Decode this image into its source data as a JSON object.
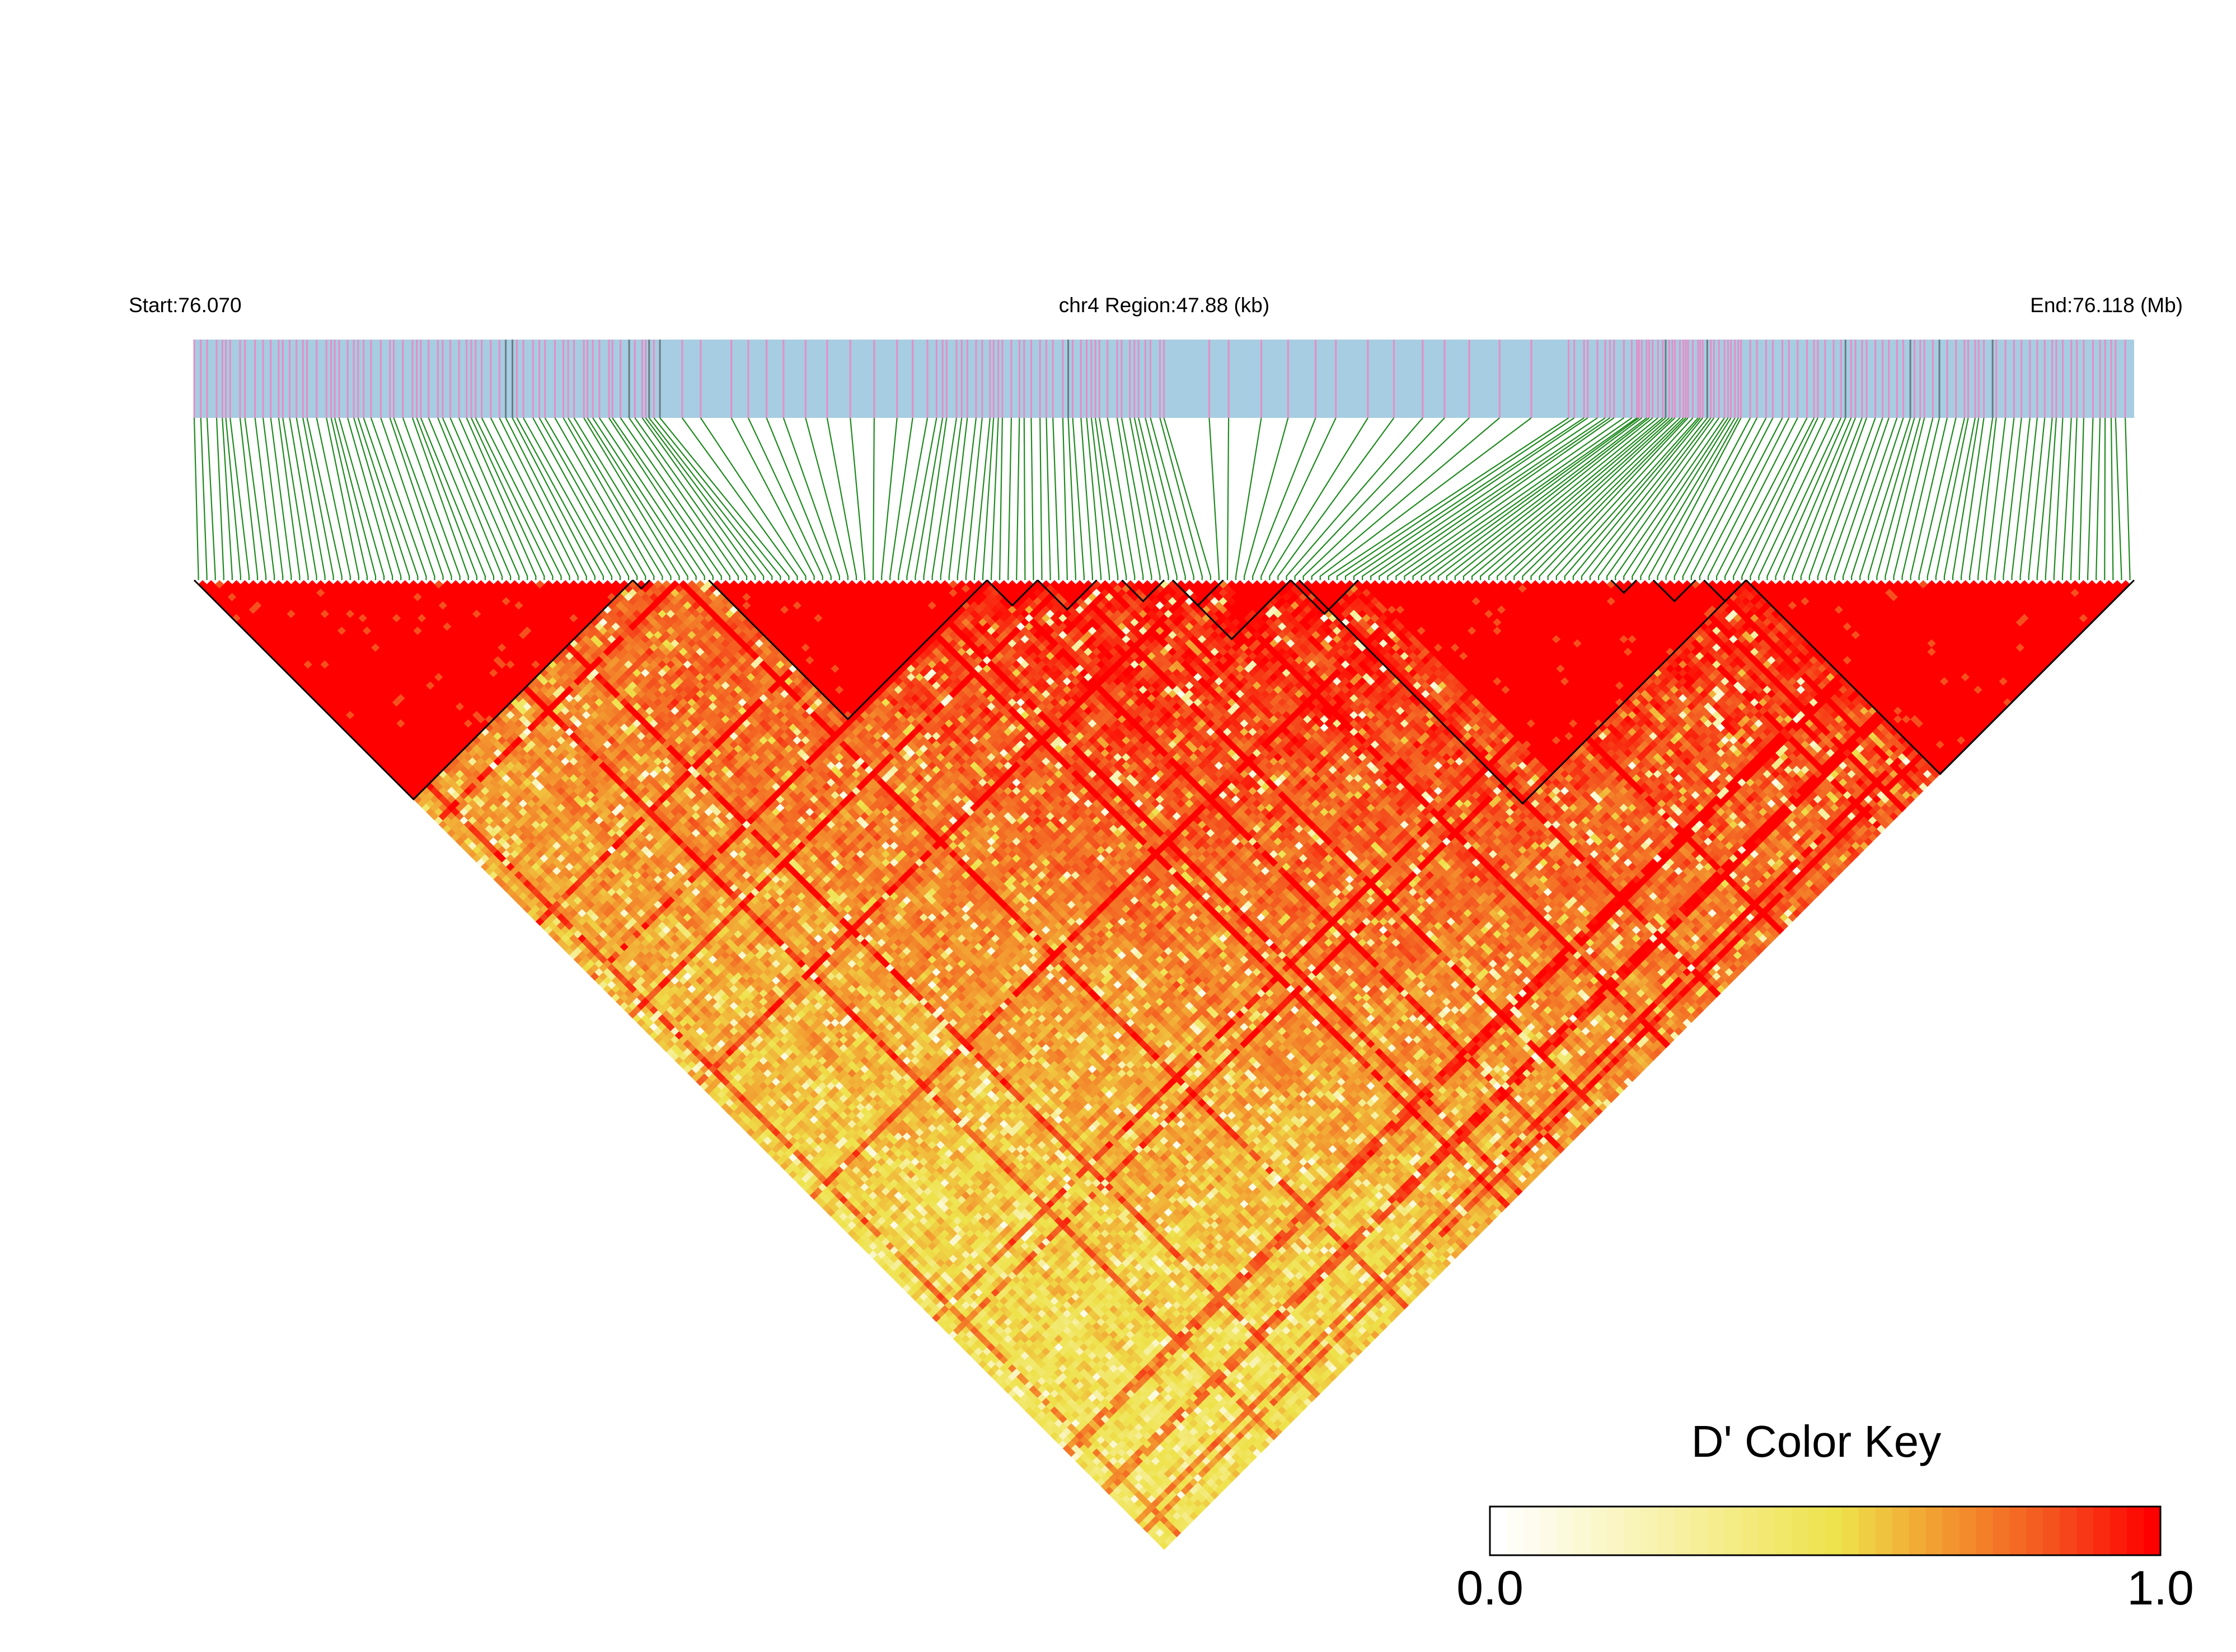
{
  "header": {
    "start_label": "Start:76.070",
    "region_label": "chr4 Region:47.88 (kb)",
    "end_label": "End:76.118 (Mb)"
  },
  "chart_data": {
    "type": "heatmap",
    "description_kind": "LD heatmap (pairwise D') for SNPs along a chromosome region",
    "chromosome": "chr4",
    "region_start_mb": 76.07,
    "region_end_mb": 76.118,
    "region_length_kb": 47.88,
    "snp_count_estimate": 230,
    "haplotype_blocks_estimate": [
      {
        "block": 1,
        "snp_fraction_start": 0.0,
        "snp_fraction_end": 0.225,
        "mean_dprime": 1.0
      },
      {
        "block": 2,
        "snp_fraction_start": 0.225,
        "snp_fraction_end": 0.235,
        "mean_dprime": 0.98
      },
      {
        "block": 3,
        "snp_fraction_start": 0.265,
        "snp_fraction_end": 0.41,
        "mean_dprime": 0.97
      },
      {
        "block": 4,
        "snp_fraction_start": 0.41,
        "snp_fraction_end": 0.435,
        "mean_dprime": 0.95
      },
      {
        "block": 5,
        "snp_fraction_start": 0.435,
        "snp_fraction_end": 0.465,
        "mean_dprime": 0.95
      },
      {
        "block": 6,
        "snp_fraction_start": 0.48,
        "snp_fraction_end": 0.5,
        "mean_dprime": 0.96
      },
      {
        "block": 7,
        "snp_fraction_start": 0.505,
        "snp_fraction_end": 0.53,
        "mean_dprime": 0.95
      },
      {
        "block": 8,
        "snp_fraction_start": 0.505,
        "snp_fraction_end": 0.565,
        "mean_dprime": 0.97
      },
      {
        "block": 9,
        "snp_fraction_start": 0.565,
        "snp_fraction_end": 0.6,
        "mean_dprime": 0.96
      },
      {
        "block": 10,
        "snp_fraction_start": 0.57,
        "snp_fraction_end": 0.8,
        "mean_dprime": 0.97
      },
      {
        "block": 11,
        "snp_fraction_start": 0.73,
        "snp_fraction_end": 0.745,
        "mean_dprime": 0.95
      },
      {
        "block": 12,
        "snp_fraction_start": 0.75,
        "snp_fraction_end": 0.775,
        "mean_dprime": 0.95
      },
      {
        "block": 13,
        "snp_fraction_start": 0.78,
        "snp_fraction_end": 0.8,
        "mean_dprime": 0.95
      },
      {
        "block": 14,
        "snp_fraction_start": 0.8,
        "snp_fraction_end": 1.0,
        "mean_dprime": 1.0
      }
    ],
    "color_key": {
      "title": "D' Color Key",
      "min_label": "0.0",
      "max_label": "1.0",
      "min": 0.0,
      "max": 1.0,
      "colors": [
        "#ffffff",
        "#f2e94e",
        "#f49a2e",
        "#ff0000"
      ]
    },
    "colors": {
      "snp_track_bg": "#a6cde1",
      "snp_marks": "#e48ec7",
      "snp_marks_dark": "#6c7a84",
      "connector_lines": "#1f8a1f",
      "block_outline": "#000000"
    }
  }
}
